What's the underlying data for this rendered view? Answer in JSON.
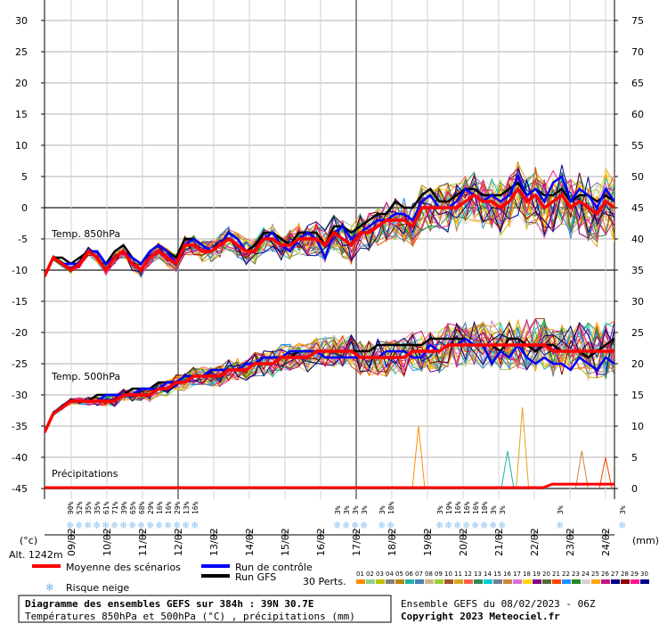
{
  "chart_data": {
    "type": "line",
    "title": "Diagramme des ensembles GEFS sur 384h : 39N 30.7E",
    "subtitle": "Températures 850hPa et 500hPa (°C) , précipitations (mm)",
    "left_axis": {
      "unit": "(°c)",
      "ylim": [
        -45,
        30
      ],
      "ticks": [
        30,
        25,
        20,
        15,
        10,
        5,
        0,
        -5,
        -10,
        -15,
        -20,
        -25,
        -30,
        -35,
        -40,
        -45
      ]
    },
    "right_axis": {
      "unit": "(mm)",
      "ylim": [
        0,
        75
      ],
      "ticks": [
        75,
        70,
        65,
        60,
        55,
        50,
        45,
        40,
        35,
        30,
        25,
        20,
        15,
        10,
        5,
        0
      ]
    },
    "x_axis": {
      "hours": [
        0,
        384
      ],
      "date_ticks": [
        "09/02",
        "10/02",
        "11/02",
        "12/02",
        "13/02",
        "14/02",
        "15/02",
        "16/02",
        "17/02",
        "18/02",
        "19/02",
        "20/02",
        "21/02",
        "22/02",
        "23/02",
        "24/02"
      ]
    },
    "panel_labels": {
      "t850": "Temp. 850hPa",
      "t500": "Temp. 500hPa",
      "precip": "Précipitations"
    },
    "altitude": "Alt. 1242m",
    "t850_mean": [
      -11,
      -8,
      -9,
      -10,
      -9,
      -7,
      -8,
      -10,
      -8,
      -7,
      -9,
      -10,
      -8,
      -7,
      -8,
      -9,
      -6,
      -6,
      -7,
      -7,
      -6,
      -5,
      -6,
      -7,
      -7,
      -5,
      -5,
      -6,
      -6,
      -5,
      -5,
      -5,
      -6,
      -4,
      -5,
      -6,
      -4,
      -4,
      -3,
      -2,
      -2,
      -2,
      -3,
      0,
      0,
      0,
      0,
      0,
      1,
      2,
      1,
      1,
      0,
      1,
      3,
      1,
      2,
      0,
      1,
      2,
      0,
      1,
      0,
      -1,
      1,
      0
    ],
    "t850_control": [
      -11,
      -8,
      -9,
      -9,
      -9,
      -7,
      -7,
      -9,
      -8,
      -7,
      -8,
      -9,
      -7,
      -6,
      -7,
      -9,
      -6,
      -5,
      -6,
      -7,
      -6,
      -4,
      -5,
      -7,
      -7,
      -5,
      -4,
      -6,
      -7,
      -5,
      -4,
      -5,
      -8,
      -4,
      -3,
      -5,
      -4,
      -3,
      -2,
      -2,
      -1,
      -1,
      -2,
      1,
      2,
      0,
      0,
      1,
      3,
      2,
      1,
      2,
      1,
      2,
      5,
      2,
      3,
      1,
      4,
      5,
      1,
      3,
      2,
      0,
      3,
      1
    ],
    "t850_gfs": [
      -11,
      -8,
      -8,
      -9,
      -8,
      -7,
      -7,
      -9,
      -7,
      -6,
      -8,
      -9,
      -7,
      -6,
      -7,
      -8,
      -5,
      -5,
      -6,
      -7,
      -6,
      -4,
      -5,
      -7,
      -6,
      -4,
      -4,
      -5,
      -6,
      -4,
      -4,
      -4,
      -6,
      -3,
      -3,
      -4,
      -3,
      -2,
      -1,
      -1,
      1,
      0,
      0,
      2,
      3,
      1,
      1,
      2,
      3,
      3,
      2,
      2,
      2,
      3,
      4,
      2,
      3,
      2,
      2,
      3,
      1,
      2,
      2,
      1,
      2,
      1
    ],
    "t500_mean": [
      -36,
      -33,
      -32,
      -31,
      -31,
      -31,
      -31,
      -31,
      -31,
      -30,
      -30,
      -30,
      -30,
      -29,
      -29,
      -28,
      -28,
      -27,
      -27,
      -27,
      -27,
      -26,
      -26,
      -26,
      -25,
      -25,
      -25,
      -24,
      -24,
      -24,
      -24,
      -23,
      -23,
      -23,
      -23,
      -23,
      -24,
      -24,
      -24,
      -24,
      -24,
      -24,
      -23,
      -23,
      -23,
      -23,
      -22,
      -22,
      -22,
      -22,
      -22,
      -22,
      -22,
      -22,
      -22,
      -22,
      -22,
      -22,
      -23,
      -23,
      -23,
      -23,
      -23,
      -23,
      -23,
      -23
    ],
    "t500_control": [
      -36,
      -33,
      -32,
      -31,
      -31,
      -31,
      -31,
      -30,
      -30,
      -30,
      -30,
      -29,
      -29,
      -29,
      -28,
      -28,
      -27,
      -27,
      -27,
      -26,
      -26,
      -26,
      -26,
      -25,
      -25,
      -24,
      -24,
      -24,
      -23,
      -23,
      -23,
      -23,
      -24,
      -24,
      -24,
      -24,
      -24,
      -24,
      -24,
      -23,
      -23,
      -23,
      -24,
      -24,
      -22,
      -23,
      -22,
      -22,
      -21,
      -22,
      -22,
      -25,
      -23,
      -24,
      -22,
      -24,
      -25,
      -24,
      -25,
      -25,
      -26,
      -24,
      -25,
      -26,
      -24,
      -25
    ],
    "t500_gfs": [
      -36,
      -33,
      -32,
      -31,
      -31,
      -31,
      -30,
      -30,
      -30,
      -30,
      -29,
      -29,
      -29,
      -28,
      -28,
      -28,
      -27,
      -27,
      -27,
      -26,
      -26,
      -26,
      -26,
      -25,
      -25,
      -24,
      -24,
      -24,
      -24,
      -23,
      -23,
      -23,
      -23,
      -23,
      -23,
      -23,
      -23,
      -23,
      -22,
      -22,
      -22,
      -22,
      -22,
      -22,
      -21,
      -21,
      -21,
      -21,
      -21,
      -22,
      -22,
      -22,
      -23,
      -21,
      -21,
      -22,
      -23,
      -22,
      -22,
      -23,
      -23,
      -23,
      -24,
      -23,
      -22,
      -21
    ],
    "precip_peaks_mm": [
      {
        "hour": 252,
        "value": 10
      },
      {
        "hour": 312,
        "value": 6
      },
      {
        "hour": 322,
        "value": 13
      },
      {
        "hour": 362,
        "value": 6
      },
      {
        "hour": 378,
        "value": 5
      }
    ],
    "snow_risk_pct": [
      "90%",
      "52%",
      "35%",
      "35%",
      "61%",
      "71%",
      "39%",
      "65%",
      "68%",
      "29%",
      "16%",
      "16%",
      "29%",
      "13%",
      "16%",
      "3%",
      "3%",
      "3%",
      "3%",
      "3%",
      "10%",
      "3%",
      "19%",
      "16%",
      "16%",
      "16%",
      "10%",
      "3%",
      "3%",
      "3%",
      "3%",
      "3%",
      "3%",
      "6%",
      "3%",
      "6%",
      "3%",
      "6%",
      "3%",
      "6%",
      "3%",
      "6%",
      "3%",
      "10%",
      "6%",
      "23%",
      "10%",
      "3%",
      "10%",
      "13%",
      "6%",
      "13%",
      "10%"
    ],
    "legend": {
      "mean": "Moyenne des scénarios",
      "control": "Run de contrôle",
      "gfs": "Run GFS",
      "snow": "Risque neige",
      "perts": "30 Perts.",
      "pert_numbers": [
        "01",
        "02",
        "03",
        "04",
        "05",
        "06",
        "07",
        "08",
        "09",
        "10",
        "11",
        "12",
        "13",
        "14",
        "15",
        "16",
        "17",
        "18",
        "19",
        "20",
        "21",
        "22",
        "23",
        "24",
        "25",
        "26",
        "27",
        "28",
        "29",
        "30"
      ]
    },
    "colors": {
      "mean": "#ff0000",
      "control": "#0000ff",
      "gfs": "#000000",
      "snow": "#8fc4f0",
      "perturbations": [
        "#ff8c00",
        "#8fd18f",
        "#c0c000",
        "#808080",
        "#b8860b",
        "#20b2aa",
        "#4682b4",
        "#d2b48c",
        "#9acd32",
        "#a0522d",
        "#daa520",
        "#ff6347",
        "#2e8b57",
        "#00ced1",
        "#708090",
        "#cd853f",
        "#da70d6",
        "#ffd700",
        "#800080",
        "#556b2f",
        "#ff4500",
        "#1e90ff",
        "#228b22",
        "#d3d3d3",
        "#ffa500",
        "#c71585",
        "#000080",
        "#8b0000",
        "#ff1493",
        "#00008b"
      ]
    }
  },
  "info_box": {
    "title": "Diagramme des ensembles GEFS sur 384h : 39N 30.7E",
    "subtitle": "Températures 850hPa et 500hPa (°C) , précipitations (mm)"
  },
  "run_info": {
    "ensemble": "Ensemble GEFS du 08/02/2023 - 06Z",
    "copyright": "Copyright 2023 Meteociel.fr"
  }
}
